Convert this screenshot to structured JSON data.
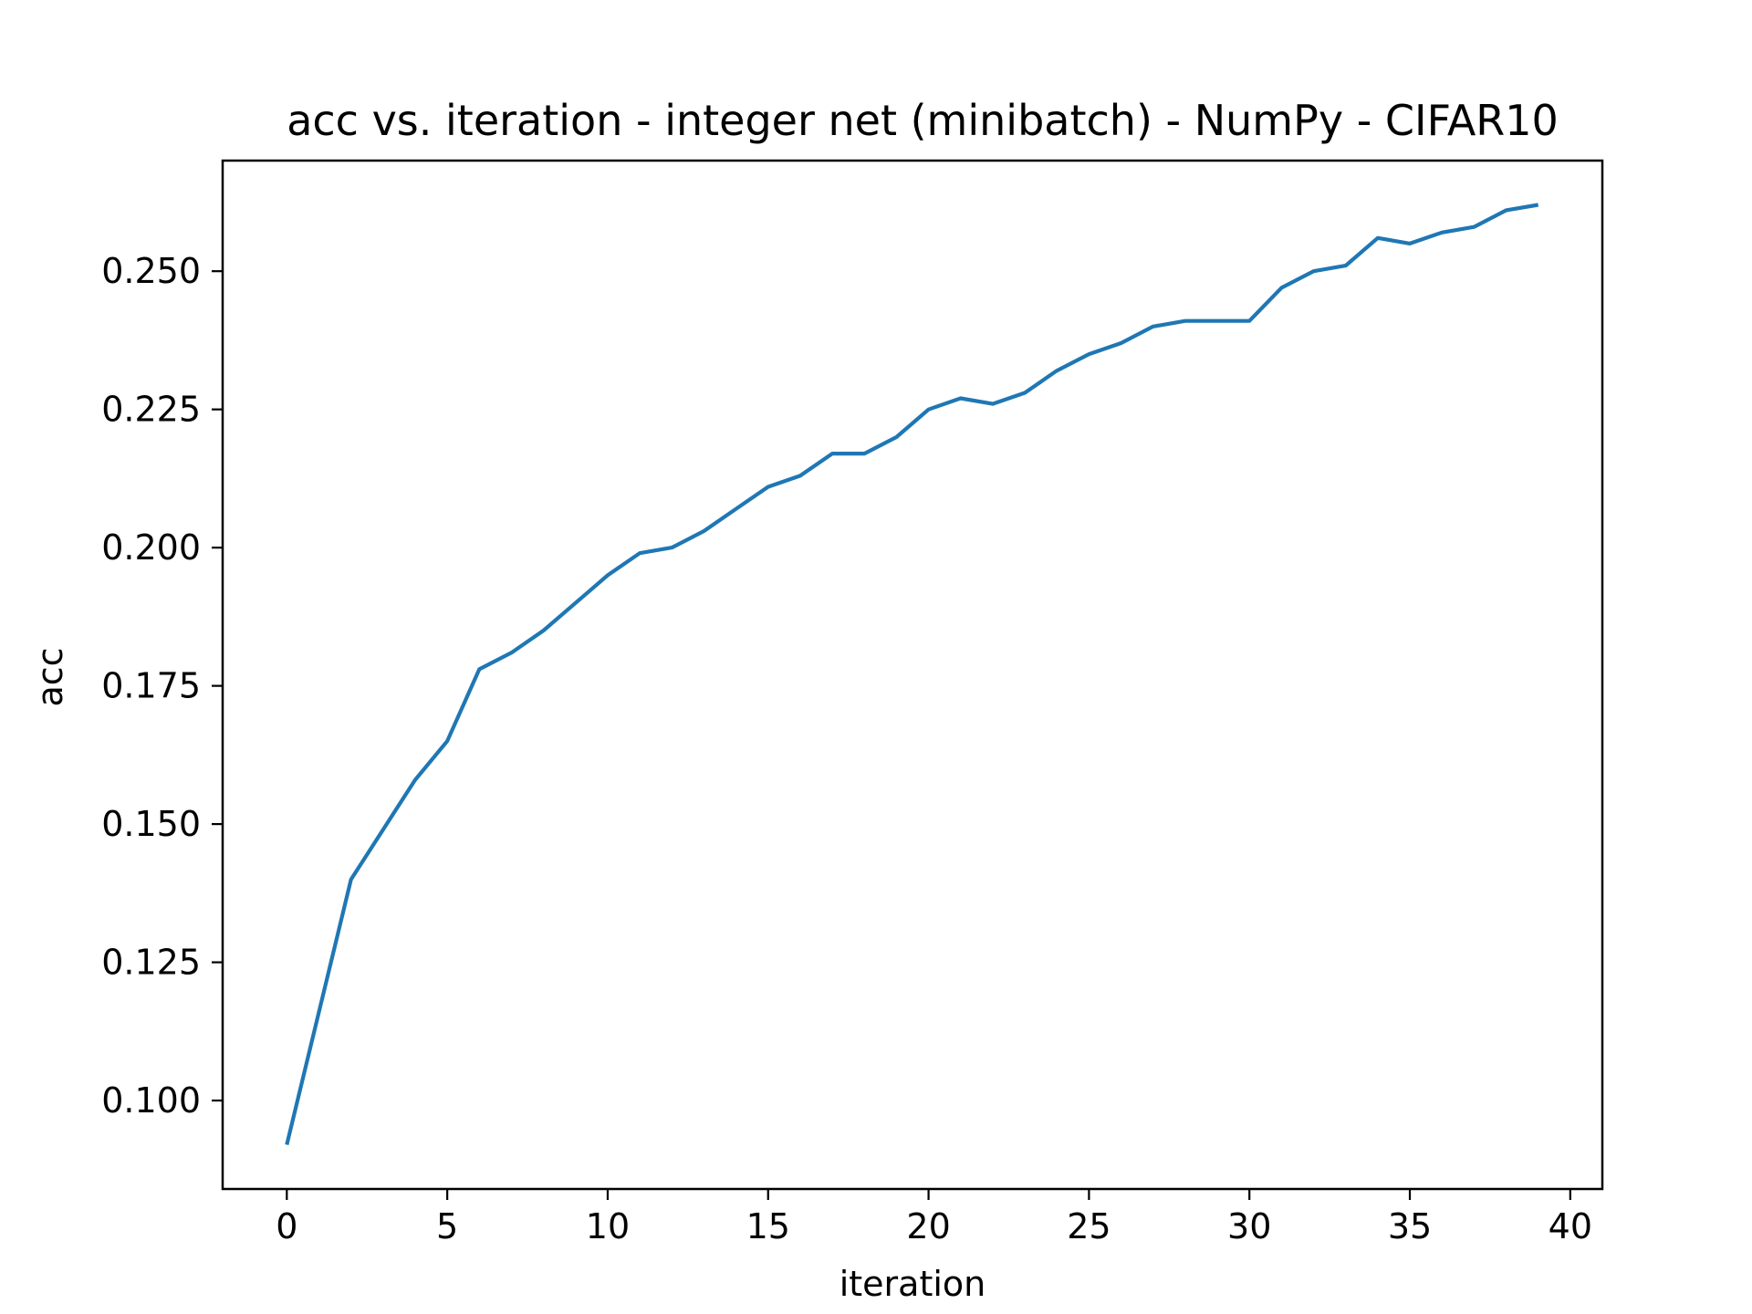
{
  "chart_data": {
    "type": "line",
    "title": "acc vs. iteration - integer net (minibatch) - NumPy - CIFAR10",
    "xlabel": "iteration",
    "ylabel": "acc",
    "xlim": [
      -2,
      41
    ],
    "ylim": [
      0.084,
      0.27
    ],
    "xticks": [
      0,
      5,
      10,
      15,
      20,
      25,
      30,
      35,
      40
    ],
    "xtick_labels": [
      "0",
      "5",
      "10",
      "15",
      "20",
      "25",
      "30",
      "35",
      "40"
    ],
    "yticks": [
      0.1,
      0.125,
      0.15,
      0.175,
      0.2,
      0.225,
      0.25
    ],
    "ytick_labels": [
      "0.100",
      "0.125",
      "0.150",
      "0.175",
      "0.200",
      "0.225",
      "0.250"
    ],
    "grid": false,
    "series_color": "#1f77b4",
    "series": [
      {
        "x": [
          0,
          1,
          2,
          3,
          4,
          5,
          6,
          7,
          8,
          9,
          10,
          11,
          12,
          13,
          14,
          15,
          16,
          17,
          18,
          19,
          20,
          21,
          22,
          23,
          24,
          25,
          26,
          27,
          28,
          29,
          30,
          31,
          32,
          33,
          34,
          35,
          36,
          37,
          38,
          39
        ],
        "values": [
          0.092,
          0.116,
          0.14,
          0.149,
          0.158,
          0.165,
          0.178,
          0.181,
          0.185,
          0.19,
          0.195,
          0.199,
          0.2,
          0.203,
          0.207,
          0.211,
          0.213,
          0.217,
          0.217,
          0.22,
          0.225,
          0.227,
          0.226,
          0.228,
          0.232,
          0.235,
          0.237,
          0.24,
          0.241,
          0.241,
          0.241,
          0.247,
          0.25,
          0.251,
          0.256,
          0.255,
          0.257,
          0.258,
          0.261,
          0.262
        ]
      }
    ]
  }
}
